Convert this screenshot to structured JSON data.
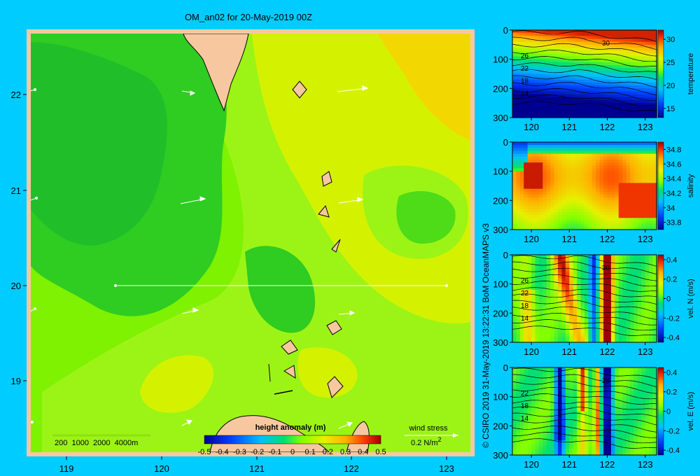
{
  "title": "OM_an02 for 20-May-2019 00Z",
  "credit": "© CSIRO 2019   31-May-2019 13:22:31 BoM OceanMAPS v3",
  "colors": {
    "background": "#00ccff",
    "land": "#f7c8a0",
    "frame": "#f7c8a0"
  },
  "map": {
    "x_ticks": [
      "119",
      "120",
      "121",
      "122",
      "123"
    ],
    "y_ticks": [
      "22",
      "21",
      "20",
      "19"
    ],
    "depth_legend": "200  1000  2000  4000m",
    "colorbar_label": "height anomaly (m)",
    "colorbar_ticks": [
      "-0.5",
      "-0.4",
      "-0.3",
      "-0.2",
      "-0.1",
      "0",
      "0.1",
      "0.2",
      "0.3",
      "0.4",
      "0.5"
    ],
    "wind_label": "wind stress",
    "wind_scale": "0.2 N/m",
    "wind_scale_sup": "2"
  },
  "panels": [
    {
      "id": "temperature",
      "label": "temperature",
      "ticks": [
        "30",
        "25",
        "20",
        "15"
      ],
      "vmin": 13,
      "vmax": 32,
      "contour_labels": [
        "30",
        "26",
        "22",
        "18",
        "14"
      ]
    },
    {
      "id": "salinity",
      "label": "salinity",
      "ticks": [
        "34.8",
        "34.6",
        "34.4",
        "34.2",
        "34",
        "33.8"
      ],
      "vmin": 33.7,
      "vmax": 34.9,
      "contour_labels": []
    },
    {
      "id": "vel-n",
      "label": "vel. N  (m/s)",
      "ticks": [
        "0.4",
        "0.2",
        "0",
        "-0.2",
        "-0.4"
      ],
      "vmin": -0.45,
      "vmax": 0.45,
      "contour_labels": [
        "30",
        "26",
        "22",
        "18",
        "14"
      ]
    },
    {
      "id": "vel-e",
      "label": "vel. E  (m/s)",
      "ticks": [
        "0.4",
        "0.2",
        "0",
        "-0.2",
        "-0.4"
      ],
      "vmin": -0.45,
      "vmax": 0.45,
      "contour_labels": [
        "26",
        "22",
        "18",
        "14"
      ]
    }
  ],
  "section_x_ticks": [
    "120",
    "121",
    "122",
    "123"
  ],
  "section_y_ticks": [
    "0",
    "100",
    "200",
    "300"
  ],
  "chart_data": [
    {
      "type": "heatmap",
      "title": "OM_an02 for 20-May-2019 00Z",
      "variable": "height anomaly (m)",
      "xlim": [
        118.5,
        123.5
      ],
      "ylim": [
        18.3,
        22.7
      ],
      "color_range": [
        -0.5,
        0.5
      ],
      "field_samples": [
        {
          "lon": 119.0,
          "lat": 21.5,
          "value": 0.05
        },
        {
          "lon": 119.0,
          "lat": 20.5,
          "value": 0.04
        },
        {
          "lon": 120.2,
          "lat": 21.7,
          "value": 0.08
        },
        {
          "lon": 120.6,
          "lat": 20.8,
          "value": 0.05
        },
        {
          "lon": 120.9,
          "lat": 20.1,
          "value": 0.1
        },
        {
          "lon": 121.5,
          "lat": 19.8,
          "value": 0.06
        },
        {
          "lon": 122.3,
          "lat": 22.0,
          "value": 0.22
        },
        {
          "lon": 123.1,
          "lat": 22.3,
          "value": 0.28
        },
        {
          "lon": 122.8,
          "lat": 20.8,
          "value": 0.09
        },
        {
          "lon": 122.5,
          "lat": 19.5,
          "value": 0.18
        },
        {
          "lon": 120.1,
          "lat": 19.0,
          "value": 0.17
        },
        {
          "lon": 119.5,
          "lat": 19.3,
          "value": 0.12
        }
      ],
      "section_line": {
        "lon": [
          119.5,
          123.0
        ],
        "lat": [
          20.0,
          20.0
        ]
      }
    },
    {
      "type": "heatmap",
      "variable": "temperature",
      "xlim": [
        119.5,
        123.3
      ],
      "ylim": [
        300,
        0
      ],
      "color_range": [
        13,
        32
      ],
      "profile": [
        {
          "depth": 0,
          "value": 30
        },
        {
          "depth": 50,
          "value": 27
        },
        {
          "depth": 100,
          "value": 22
        },
        {
          "depth": 200,
          "value": 16
        },
        {
          "depth": 300,
          "value": 13
        }
      ]
    },
    {
      "type": "heatmap",
      "variable": "salinity",
      "xlim": [
        119.5,
        123.3
      ],
      "ylim": [
        300,
        0
      ],
      "color_range": [
        33.7,
        34.9
      ],
      "profile": [
        {
          "depth": 0,
          "value": 34.05
        },
        {
          "depth": 50,
          "value": 34.4
        },
        {
          "depth": 150,
          "value": 34.65
        },
        {
          "depth": 250,
          "value": 34.5
        },
        {
          "depth": 300,
          "value": 34.4
        }
      ]
    },
    {
      "type": "heatmap",
      "variable": "vel. N (m/s)",
      "xlim": [
        119.5,
        123.3
      ],
      "ylim": [
        300,
        0
      ],
      "color_range": [
        -0.45,
        0.45
      ],
      "features": [
        {
          "lon": 121.0,
          "value": 0.35
        },
        {
          "lon": 122.0,
          "value": 0.5
        },
        {
          "lon": 121.7,
          "value": -0.3
        },
        {
          "lon": 121.4,
          "value": 0.1
        }
      ]
    },
    {
      "type": "heatmap",
      "variable": "vel. E (m/s)",
      "xlim": [
        119.5,
        123.3
      ],
      "ylim": [
        300,
        0
      ],
      "color_range": [
        -0.45,
        0.45
      ],
      "features": [
        {
          "lon": 120.75,
          "value": -0.45
        },
        {
          "lon": 122.0,
          "value": -0.45
        },
        {
          "lon": 121.3,
          "value": 0.4
        },
        {
          "lon": 121.7,
          "value": 0.25
        }
      ]
    }
  ]
}
